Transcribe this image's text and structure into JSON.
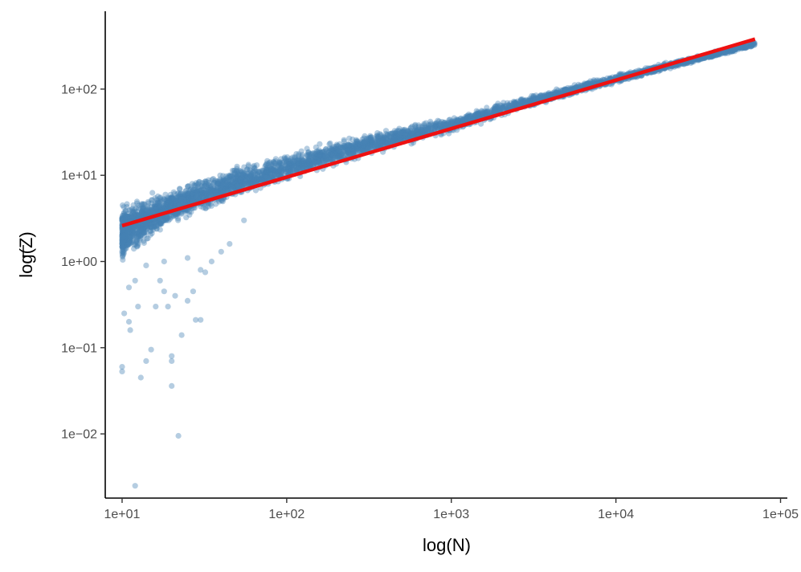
{
  "chart_data": {
    "type": "scatter",
    "xlabel": "log(N)",
    "ylabel": "log(Z)",
    "x_scale": "log",
    "y_scale": "log",
    "xlim": [
      7.9,
      110000
    ],
    "ylim": [
      0.0018,
      800
    ],
    "x_ticks": [
      10,
      100,
      1000,
      10000,
      100000
    ],
    "x_tick_labels": [
      "1e+01",
      "1e+02",
      "1e+03",
      "1e+04",
      "1e+05"
    ],
    "y_ticks": [
      0.01,
      0.1,
      1,
      10,
      100
    ],
    "y_tick_labels": [
      "1e−02",
      "1e−01",
      "1e+00",
      "1e+01",
      "1e+02"
    ],
    "grid": false,
    "legend": "none",
    "colors": {
      "points": "#4682b4",
      "fit": "#ee1111",
      "axis": "#000000"
    },
    "series": [
      {
        "type": "scatter",
        "color": "#4682b4",
        "opacity": 0.4,
        "band": [
          [
            10,
            0.9,
            5.0
          ],
          [
            20,
            2.5,
            7.5
          ],
          [
            50,
            5.0,
            13.5
          ],
          [
            100,
            8.0,
            19.0
          ],
          [
            300,
            16.0,
            31.0
          ],
          [
            1000,
            30.0,
            50.0
          ],
          [
            3000,
            60.0,
            88.0
          ],
          [
            10000,
            115.0,
            150.0
          ],
          [
            30000,
            200.0,
            245.0
          ],
          [
            70000,
            310.0,
            360.0
          ]
        ],
        "outliers": [
          [
            10,
            0.06
          ],
          [
            10,
            0.053
          ],
          [
            10.3,
            0.25
          ],
          [
            11,
            0.2
          ],
          [
            11.2,
            0.16
          ],
          [
            12,
            0.0025
          ],
          [
            12.5,
            0.3
          ],
          [
            13,
            0.045
          ],
          [
            14,
            0.07
          ],
          [
            15,
            0.095
          ],
          [
            16,
            0.3
          ],
          [
            17,
            0.6
          ],
          [
            18,
            0.45
          ],
          [
            19,
            0.3
          ],
          [
            20,
            0.08
          ],
          [
            20,
            0.07
          ],
          [
            20,
            0.036
          ],
          [
            21,
            0.4
          ],
          [
            22,
            0.0095
          ],
          [
            23,
            0.14
          ],
          [
            25,
            0.35
          ],
          [
            27,
            0.45
          ],
          [
            28,
            0.21
          ],
          [
            30,
            0.21
          ],
          [
            30,
            0.8
          ],
          [
            32,
            0.75
          ],
          [
            35,
            1.0
          ],
          [
            40,
            1.3
          ],
          [
            45,
            1.6
          ],
          [
            14,
            0.9
          ],
          [
            12,
            0.6
          ],
          [
            18,
            1.0
          ],
          [
            25,
            1.1
          ],
          [
            55,
            3.0
          ],
          [
            11,
            0.5
          ]
        ]
      },
      {
        "type": "line",
        "color": "#ee1111",
        "x": [
          10,
          70000
        ],
        "y": [
          2.6,
          380
        ]
      }
    ]
  }
}
